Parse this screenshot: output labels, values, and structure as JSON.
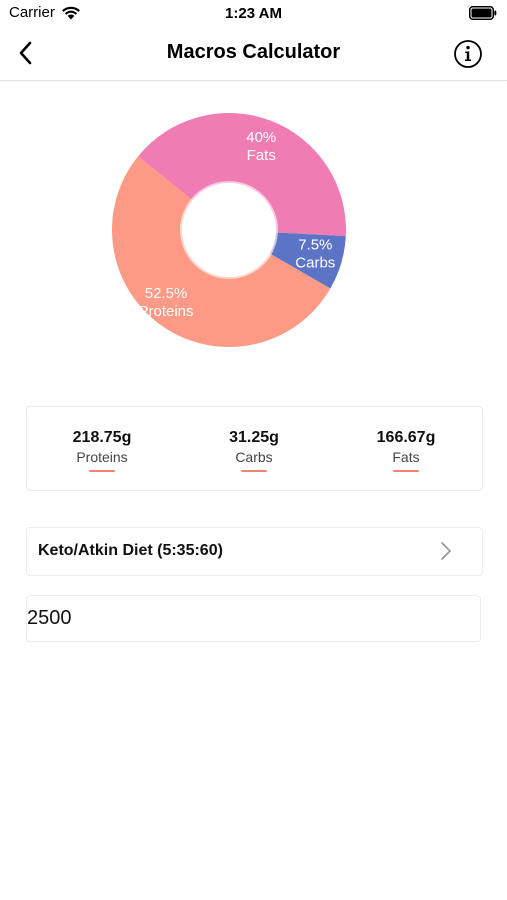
{
  "status_bar": {
    "carrier": "Carrier",
    "time": "1:23 AM"
  },
  "nav": {
    "title": "Macros Calculator",
    "back_icon": "chevron-left-icon",
    "info_icon": "info-icon"
  },
  "chart_data": {
    "type": "pie",
    "donut": true,
    "slices": [
      {
        "label": "Fats",
        "percent_label": "40%",
        "value": 40,
        "color": "#f07cb4"
      },
      {
        "label": "Carbs",
        "percent_label": "7.5%",
        "value": 7.5,
        "color": "#5c74c6"
      },
      {
        "label": "Proteins",
        "percent_label": "52.5%",
        "value": 52.5,
        "color": "#fd9a86"
      }
    ]
  },
  "summary": [
    {
      "value": "218.75g",
      "label": "Proteins",
      "accent": "#f4846f"
    },
    {
      "value": "31.25g",
      "label": "Carbs",
      "accent": "#f4846f"
    },
    {
      "value": "166.67g",
      "label": "Fats",
      "accent": "#f4846f"
    }
  ],
  "diet": {
    "label": "Keto/Atkin Diet (5:35:60)",
    "icon": "chevron-right-icon"
  },
  "calories": {
    "value": "2500"
  }
}
